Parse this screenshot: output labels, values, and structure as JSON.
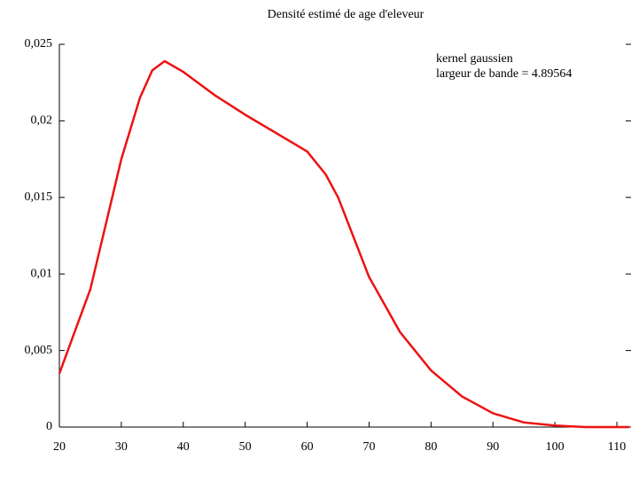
{
  "chart_data": {
    "type": "line",
    "title": "Densité estimé de age d'eleveur",
    "annotations": [
      "kernel gaussien",
      "largeur de bande = 4.89564"
    ],
    "x": [
      20,
      25,
      30,
      33,
      35,
      37,
      40,
      45,
      50,
      55,
      60,
      63,
      65,
      70,
      75,
      80,
      85,
      90,
      95,
      100,
      105,
      110,
      112
    ],
    "series": [
      {
        "color": "#ee1111",
        "values": [
          0.0035,
          0.009,
          0.0175,
          0.0215,
          0.0233,
          0.0239,
          0.0232,
          0.0217,
          0.0204,
          0.0192,
          0.018,
          0.0165,
          0.015,
          0.0098,
          0.0062,
          0.0037,
          0.002,
          0.0009,
          0.0003,
          0.0001,
          0,
          0,
          0
        ]
      }
    ],
    "xlim": [
      20,
      112
    ],
    "xticks": [
      20,
      30,
      40,
      50,
      60,
      70,
      80,
      90,
      100,
      110
    ],
    "ylim": [
      0,
      0.025
    ],
    "yticks": [
      0,
      {
        "value": 0.005,
        "label": "0,005"
      },
      {
        "value": 0.01,
        "label": "0,01"
      },
      {
        "value": 0.015,
        "label": "0,015"
      },
      {
        "value": 0.02,
        "label": "0,02"
      },
      {
        "value": 0.025,
        "label": "0,025"
      }
    ]
  }
}
